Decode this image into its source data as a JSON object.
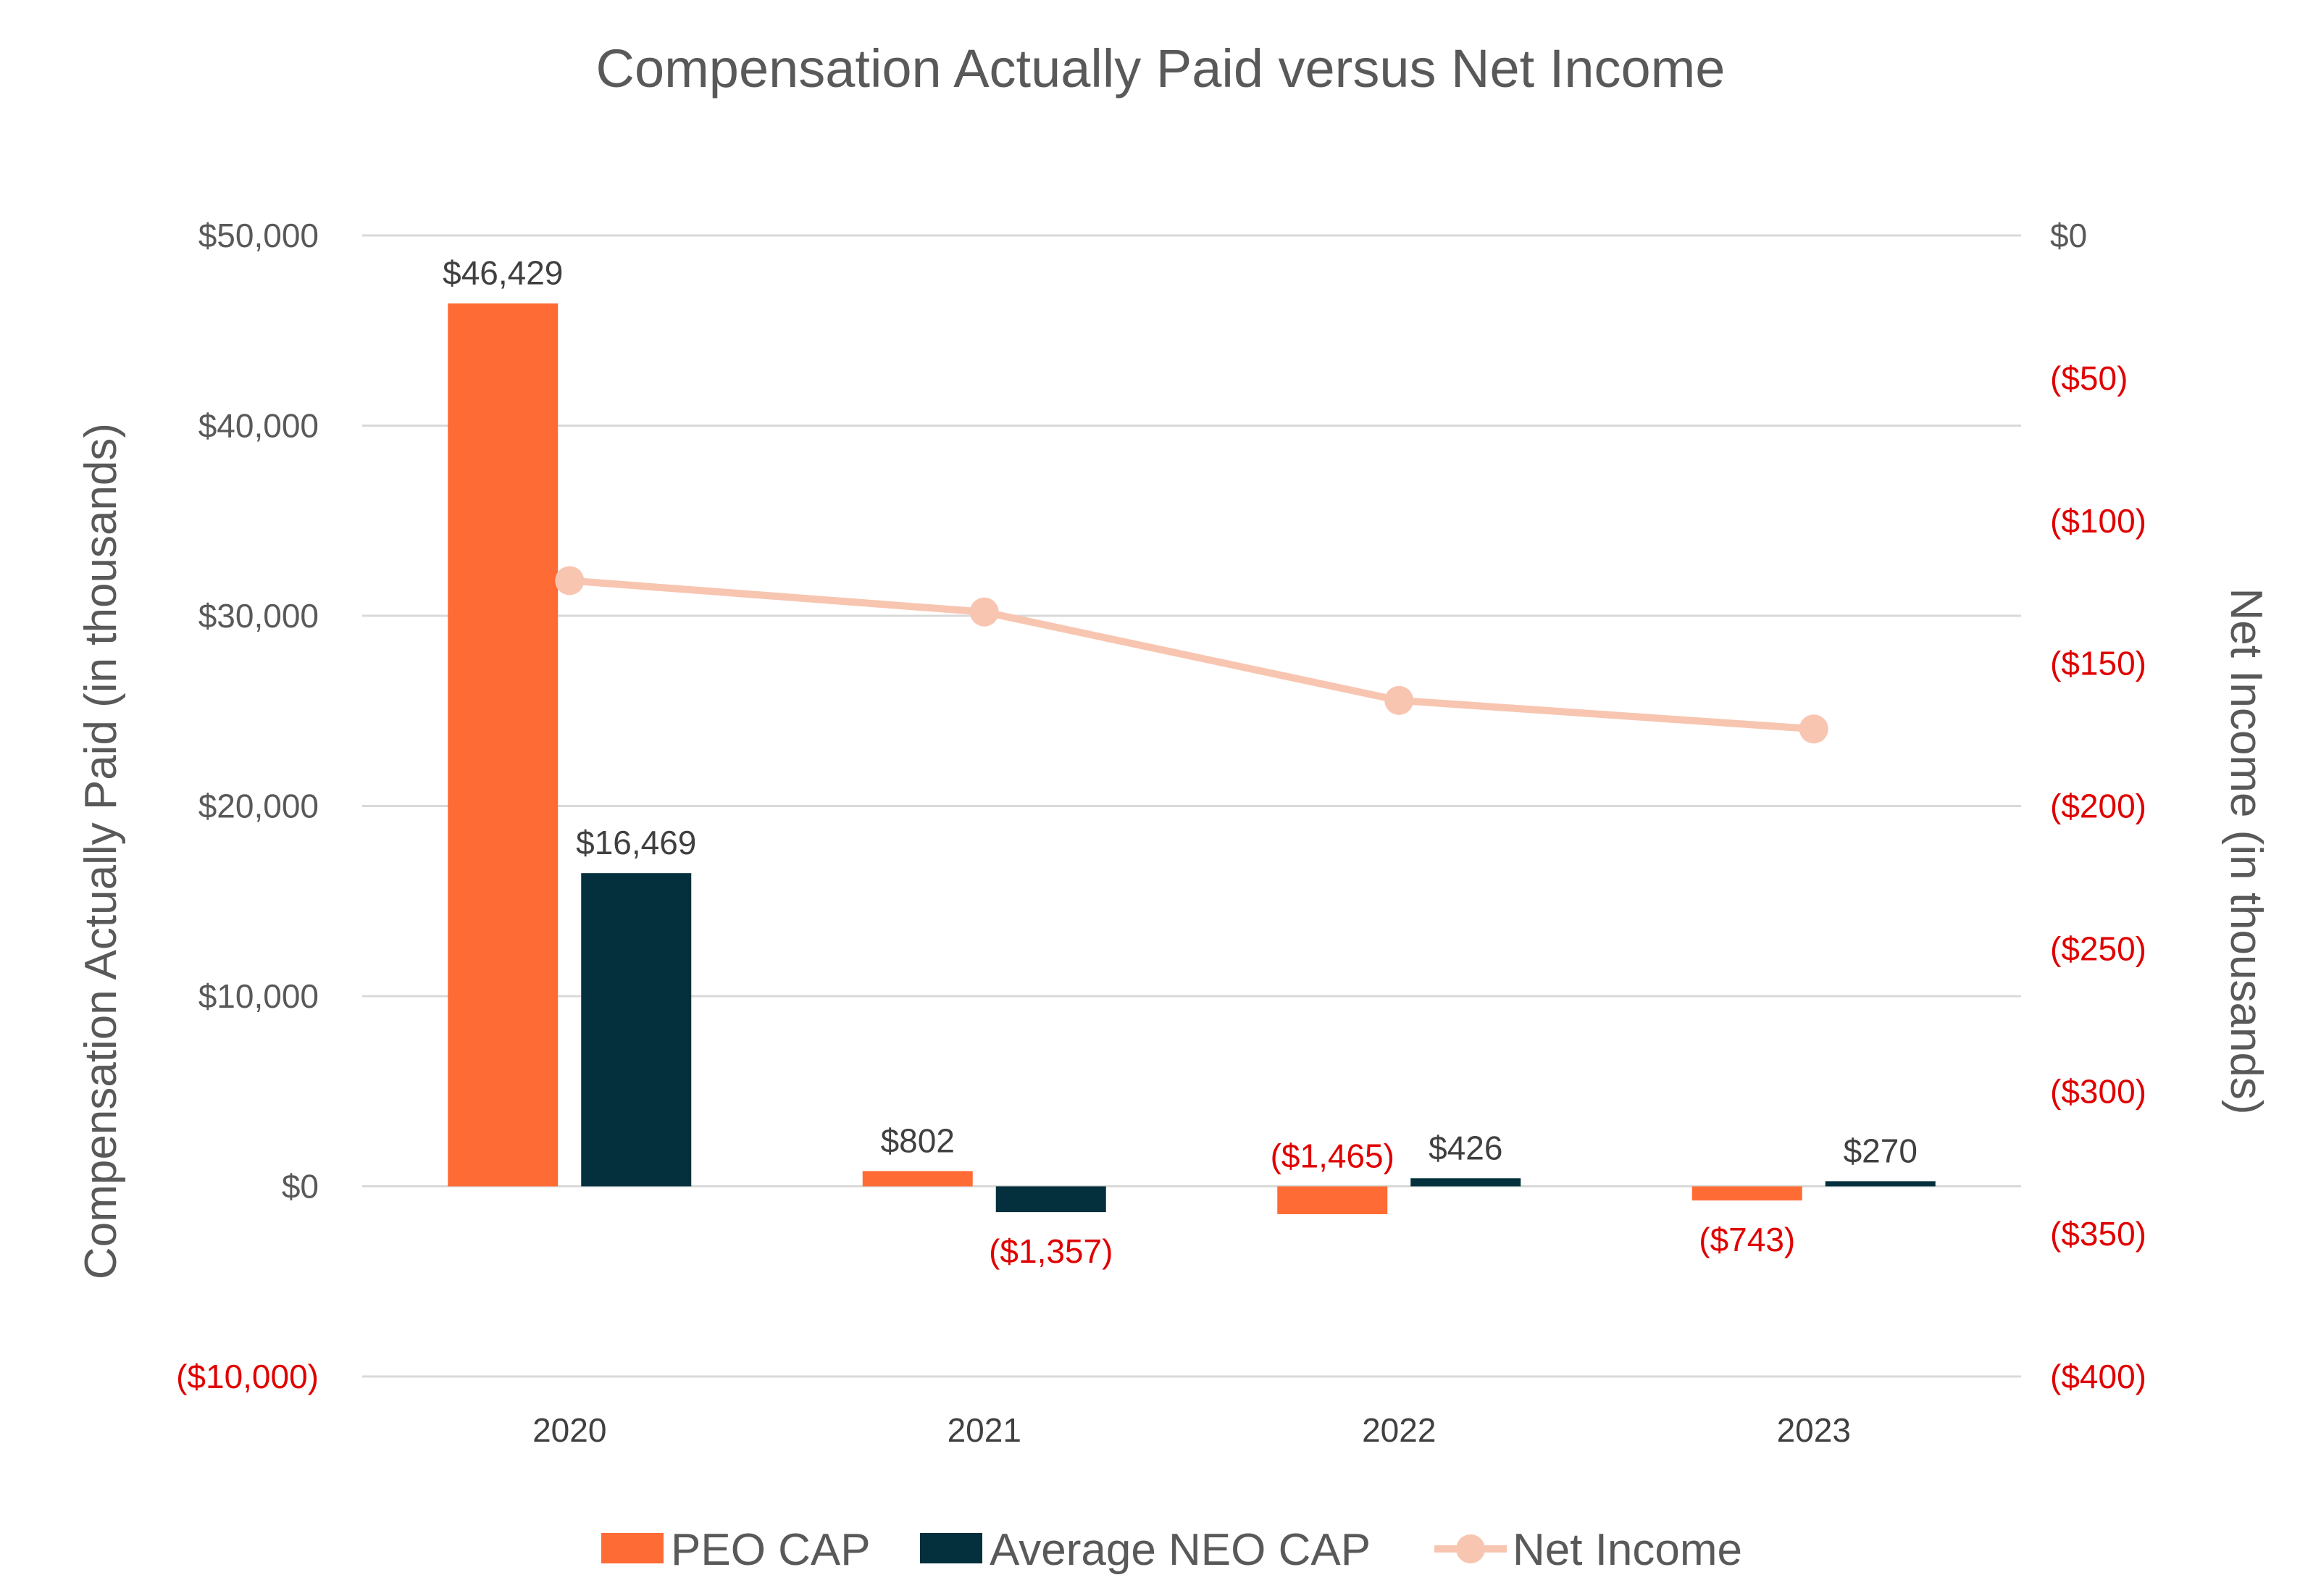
{
  "chart_data": {
    "type": "bar",
    "title": "Compensation Actually Paid versus Net Income",
    "categories": [
      "2020",
      "2021",
      "2022",
      "2023"
    ],
    "series": [
      {
        "name": "PEO CAP",
        "type": "bar",
        "axis": "left",
        "color": "#FF6B35",
        "values": [
          46429,
          802,
          -1465,
          -743
        ],
        "labels": [
          "$46,429",
          "$802",
          "($1,465)",
          "($743)"
        ]
      },
      {
        "name": "Average NEO CAP",
        "type": "bar",
        "axis": "left",
        "color": "#04303D",
        "values": [
          16469,
          -1357,
          426,
          270
        ],
        "labels": [
          "$16,469",
          "($1,357)",
          "$426",
          "$270"
        ]
      },
      {
        "name": "Net Income",
        "type": "line",
        "axis": "right",
        "color": "#F8C5B0",
        "values": [
          -121,
          -132,
          -163,
          -173
        ]
      }
    ],
    "y_left": {
      "label": "Compensation Actually Paid (in thousands)",
      "range": [
        -10000,
        50000
      ],
      "ticks": [
        50000,
        40000,
        30000,
        20000,
        10000,
        0,
        -10000
      ],
      "tick_labels": [
        "$50,000",
        "$40,000",
        "$30,000",
        "$20,000",
        "$10,000",
        "$0",
        "($10,000)"
      ]
    },
    "y_right": {
      "label": "Net Income (in thousands)",
      "range": [
        -400,
        0
      ],
      "ticks": [
        0,
        -50,
        -100,
        -150,
        -200,
        -250,
        -300,
        -350,
        -400
      ],
      "tick_labels": [
        "$0",
        "($50)",
        "($100)",
        "($150)",
        "($200)",
        "($250)",
        "($300)",
        "($350)",
        "($400)"
      ]
    },
    "grid": true,
    "legend_position": "bottom",
    "colors": {
      "negative": "#E00000",
      "text": "#595959",
      "label": "#404040",
      "grid": "#D9D9D9"
    }
  }
}
